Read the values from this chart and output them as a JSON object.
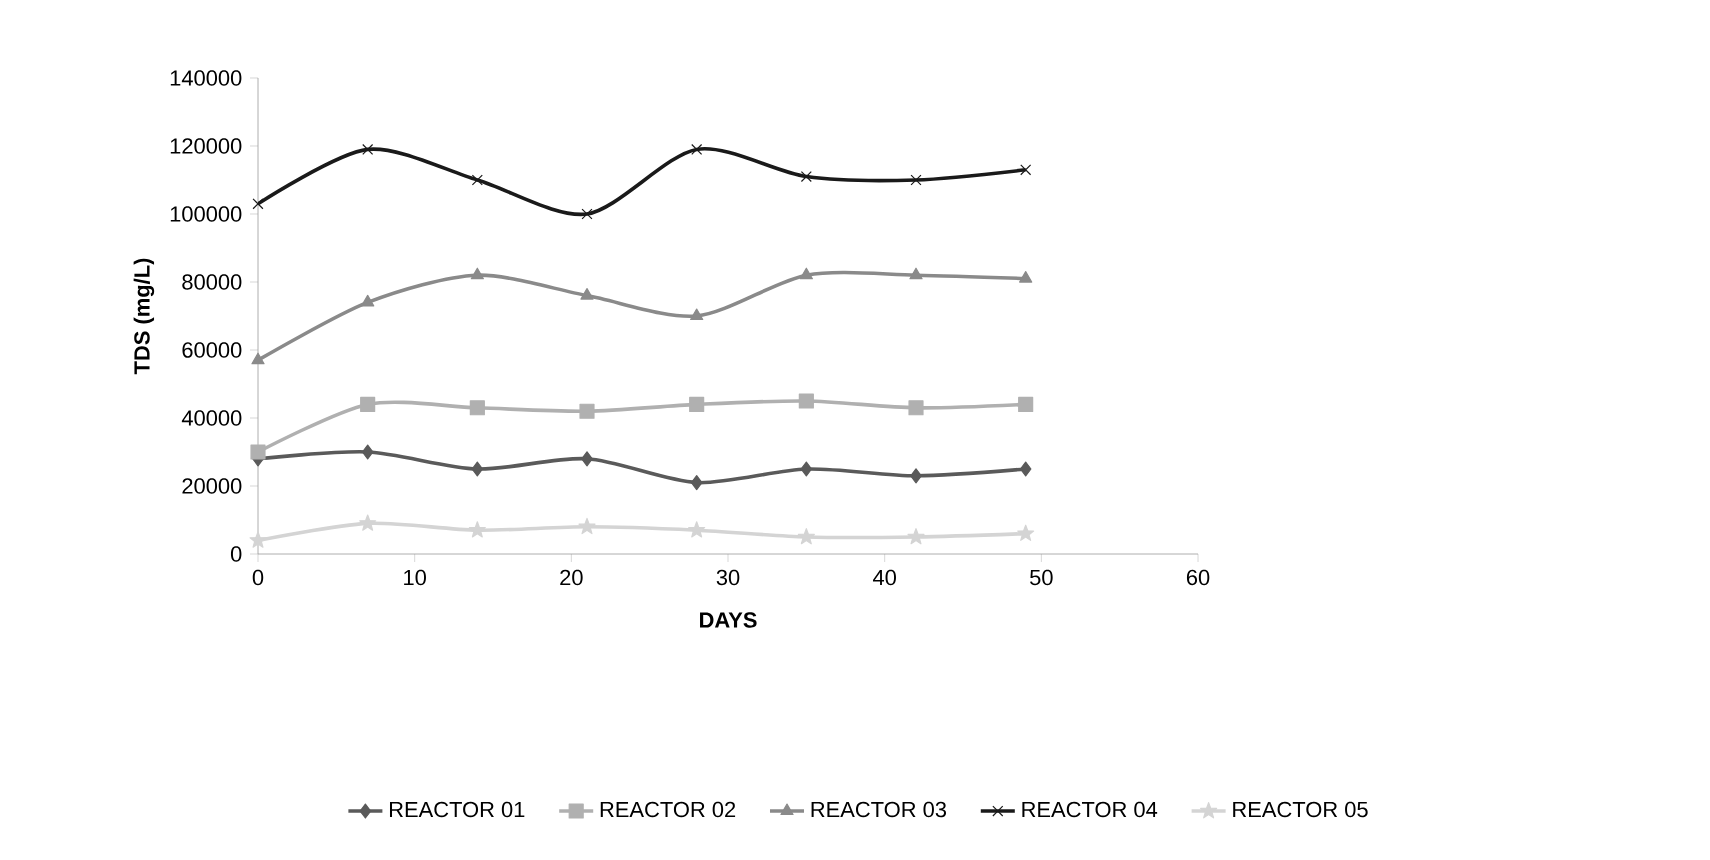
{
  "chart_data": {
    "type": "line",
    "xlabel": "DAYS",
    "ylabel": "TDS (mg/L)",
    "x": [
      0,
      7,
      14,
      21,
      28,
      35,
      42,
      49
    ],
    "xlim": [
      0,
      60
    ],
    "xticks": [
      0,
      10,
      20,
      30,
      40,
      50,
      60
    ],
    "ylim": [
      0,
      140000
    ],
    "yticks": [
      0,
      20000,
      40000,
      60000,
      80000,
      100000,
      120000,
      140000
    ],
    "grid": false,
    "legend": "bottom",
    "series": [
      {
        "name": "REACTOR 01",
        "color": "#5a5a5a",
        "marker": "diamond",
        "values": [
          28000,
          30000,
          25000,
          28000,
          21000,
          25000,
          23000,
          25000
        ]
      },
      {
        "name": "REACTOR 02",
        "color": "#b0b0b0",
        "marker": "square",
        "values": [
          30000,
          44000,
          43000,
          42000,
          44000,
          45000,
          43000,
          44000
        ]
      },
      {
        "name": "REACTOR 03",
        "color": "#8a8a8a",
        "marker": "triangle",
        "values": [
          57000,
          74000,
          82000,
          76000,
          70000,
          82000,
          82000,
          81000
        ]
      },
      {
        "name": "REACTOR 04",
        "color": "#1a1a1a",
        "marker": "cross",
        "values": [
          103000,
          119000,
          110000,
          100000,
          119000,
          111000,
          110000,
          113000
        ]
      },
      {
        "name": "REACTOR 05",
        "color": "#d4d4d4",
        "marker": "star",
        "values": [
          4000,
          9000,
          7000,
          8000,
          7000,
          5000,
          5000,
          6000
        ]
      }
    ]
  }
}
